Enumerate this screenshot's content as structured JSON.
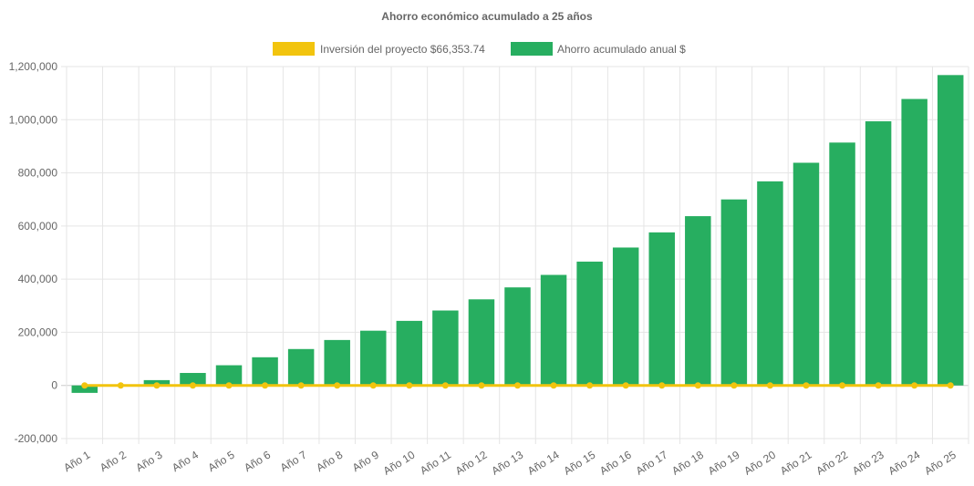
{
  "chart_data": {
    "type": "bar",
    "title": "Ahorro económico acumulado a 25 años",
    "xlabel": "",
    "ylabel": "",
    "ylim": [
      -200000,
      1200000
    ],
    "yticks": [
      "1,200,000",
      "1,000,000",
      "800,000",
      "600,000",
      "400,000",
      "200,000",
      "0",
      "-200,000"
    ],
    "ytick_values": [
      1200000,
      1000000,
      800000,
      600000,
      400000,
      200000,
      0,
      -200000
    ],
    "categories": [
      "Año 1",
      "Año 2",
      "Año 3",
      "Año 4",
      "Año 5",
      "Año 6",
      "Año 7",
      "Año 8",
      "Año 9",
      "Año 10",
      "Año 11",
      "Año 12",
      "Año 13",
      "Año 14",
      "Año 15",
      "Año 16",
      "Año 17",
      "Año 18",
      "Año 19",
      "Año 20",
      "Año 21",
      "Año 22",
      "Año 23",
      "Año 24",
      "Año 25"
    ],
    "grid": true,
    "legend_position": "top",
    "series": [
      {
        "name": "Inversión del proyecto $66,353.74",
        "type": "line",
        "color": "#f2c40e",
        "values": [
          0,
          0,
          0,
          0,
          0,
          0,
          0,
          0,
          0,
          0,
          0,
          0,
          0,
          0,
          0,
          0,
          0,
          0,
          0,
          0,
          0,
          0,
          0,
          0,
          0
        ]
      },
      {
        "name": "Ahorro acumulado anual $",
        "type": "bar",
        "color": "#27ae60",
        "values": [
          -28000,
          0,
          20000,
          47000,
          76000,
          106000,
          137000,
          171000,
          206000,
          243000,
          282000,
          324000,
          369000,
          416000,
          466000,
          519000,
          576000,
          637000,
          700000,
          768000,
          838000,
          914000,
          994000,
          1078000,
          1168000
        ]
      }
    ]
  }
}
